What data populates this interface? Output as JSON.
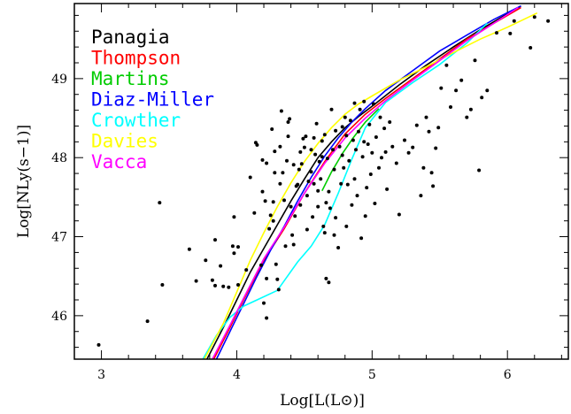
{
  "chart_data": {
    "type": "scatter",
    "xlabel": "Log[L(L⊙)]",
    "ylabel": "Log[NLy(s−1)]",
    "xlim": [
      2.8,
      6.45
    ],
    "ylim": [
      45.45,
      49.95
    ],
    "xticks": [
      3,
      4,
      5,
      6
    ],
    "yticks": [
      46,
      47,
      48,
      49
    ],
    "grid": false,
    "legend_position": "top-left",
    "points": [
      [
        2.98,
        45.63
      ],
      [
        3.34,
        45.93
      ],
      [
        3.43,
        47.43
      ],
      [
        3.45,
        46.39
      ],
      [
        3.65,
        46.84
      ],
      [
        3.7,
        46.44
      ],
      [
        3.77,
        46.7
      ],
      [
        3.82,
        46.45
      ],
      [
        3.84,
        46.38
      ],
      [
        3.84,
        46.96
      ],
      [
        3.88,
        46.63
      ],
      [
        3.9,
        46.37
      ],
      [
        3.94,
        46.36
      ],
      [
        3.97,
        46.88
      ],
      [
        3.98,
        46.79
      ],
      [
        3.98,
        47.25
      ],
      [
        4.01,
        46.39
      ],
      [
        4.01,
        46.87
      ],
      [
        4.07,
        46.58
      ],
      [
        4.1,
        47.75
      ],
      [
        4.13,
        47.3
      ],
      [
        4.14,
        48.19
      ],
      [
        4.15,
        48.16
      ],
      [
        4.18,
        46.64
      ],
      [
        4.19,
        47.57
      ],
      [
        4.19,
        47.97
      ],
      [
        4.2,
        46.16
      ],
      [
        4.21,
        47.45
      ],
      [
        4.22,
        46.47
      ],
      [
        4.22,
        47.93
      ],
      [
        4.22,
        45.97
      ],
      [
        4.24,
        47.1
      ],
      [
        4.25,
        47.27
      ],
      [
        4.26,
        48.36
      ],
      [
        4.27,
        47.2
      ],
      [
        4.27,
        47.44
      ],
      [
        4.28,
        47.81
      ],
      [
        4.28,
        48.08
      ],
      [
        4.29,
        46.65
      ],
      [
        4.3,
        46.46
      ],
      [
        4.31,
        46.33
      ],
      [
        4.32,
        47.67
      ],
      [
        4.32,
        48.14
      ],
      [
        4.33,
        48.59
      ],
      [
        4.34,
        47.81
      ],
      [
        4.35,
        47.46
      ],
      [
        4.36,
        46.88
      ],
      [
        4.37,
        47.96
      ],
      [
        4.38,
        48.27
      ],
      [
        4.38,
        48.45
      ],
      [
        4.39,
        48.49
      ],
      [
        4.4,
        47.38
      ],
      [
        4.41,
        47.02
      ],
      [
        4.42,
        46.9
      ],
      [
        4.42,
        47.91
      ],
      [
        4.43,
        47.26
      ],
      [
        4.44,
        47.64
      ],
      [
        4.45,
        47.66
      ],
      [
        4.46,
        47.85
      ],
      [
        4.47,
        47.4
      ],
      [
        4.47,
        48.07
      ],
      [
        4.48,
        47.92
      ],
      [
        4.49,
        48.24
      ],
      [
        4.5,
        48.13
      ],
      [
        4.51,
        48.27
      ],
      [
        4.52,
        47.09
      ],
      [
        4.52,
        47.52
      ],
      [
        4.53,
        47.7
      ],
      [
        4.55,
        47.82
      ],
      [
        4.55,
        48.1
      ],
      [
        4.56,
        47.25
      ],
      [
        4.57,
        47.67
      ],
      [
        4.57,
        48.25
      ],
      [
        4.58,
        48.04
      ],
      [
        4.59,
        48.43
      ],
      [
        4.6,
        47.38
      ],
      [
        4.6,
        47.58
      ],
      [
        4.61,
        47.95
      ],
      [
        4.62,
        47.73
      ],
      [
        4.63,
        48.01
      ],
      [
        4.63,
        48.21
      ],
      [
        4.64,
        47.13
      ],
      [
        4.65,
        47.05
      ],
      [
        4.65,
        48.29
      ],
      [
        4.66,
        46.47
      ],
      [
        4.66,
        47.43
      ],
      [
        4.67,
        47.99
      ],
      [
        4.68,
        46.42
      ],
      [
        4.68,
        47.57
      ],
      [
        4.69,
        47.36
      ],
      [
        4.7,
        48.61
      ],
      [
        4.71,
        48.1
      ],
      [
        4.72,
        47.02
      ],
      [
        4.72,
        47.85
      ],
      [
        4.73,
        47.24
      ],
      [
        4.73,
        48.34
      ],
      [
        4.75,
        46.86
      ],
      [
        4.76,
        48.14
      ],
      [
        4.77,
        47.67
      ],
      [
        4.78,
        48.03
      ],
      [
        4.78,
        48.39
      ],
      [
        4.79,
        47.87
      ],
      [
        4.8,
        48.51
      ],
      [
        4.81,
        47.13
      ],
      [
        4.81,
        48.28
      ],
      [
        4.82,
        47.66
      ],
      [
        4.83,
        47.96
      ],
      [
        4.84,
        48.47
      ],
      [
        4.85,
        47.4
      ],
      [
        4.86,
        48.22
      ],
      [
        4.87,
        47.73
      ],
      [
        4.87,
        48.69
      ],
      [
        4.88,
        48.1
      ],
      [
        4.89,
        47.52
      ],
      [
        4.9,
        48.33
      ],
      [
        4.91,
        48.61
      ],
      [
        4.92,
        46.98
      ],
      [
        4.93,
        48.01
      ],
      [
        4.94,
        48.2
      ],
      [
        4.94,
        48.71
      ],
      [
        4.95,
        47.26
      ],
      [
        4.96,
        47.62
      ],
      [
        4.97,
        48.17
      ],
      [
        4.98,
        48.42
      ],
      [
        4.99,
        47.79
      ],
      [
        5.0,
        48.06
      ],
      [
        5.01,
        48.68
      ],
      [
        5.02,
        47.42
      ],
      [
        5.03,
        48.26
      ],
      [
        5.05,
        47.87
      ],
      [
        5.06,
        48.51
      ],
      [
        5.07,
        48.0
      ],
      [
        5.09,
        48.37
      ],
      [
        5.1,
        48.07
      ],
      [
        5.11,
        47.6
      ],
      [
        5.13,
        48.45
      ],
      [
        5.15,
        48.14
      ],
      [
        5.18,
        47.93
      ],
      [
        5.2,
        47.28
      ],
      [
        5.24,
        48.22
      ],
      [
        5.27,
        48.06
      ],
      [
        5.3,
        48.13
      ],
      [
        5.33,
        48.41
      ],
      [
        5.36,
        47.52
      ],
      [
        5.38,
        47.87
      ],
      [
        5.4,
        48.51
      ],
      [
        5.42,
        48.33
      ],
      [
        5.44,
        47.81
      ],
      [
        5.45,
        47.64
      ],
      [
        5.47,
        48.12
      ],
      [
        5.49,
        48.38
      ],
      [
        5.51,
        48.88
      ],
      [
        5.55,
        49.17
      ],
      [
        5.58,
        48.64
      ],
      [
        5.62,
        48.85
      ],
      [
        5.66,
        48.98
      ],
      [
        5.7,
        48.51
      ],
      [
        5.73,
        48.61
      ],
      [
        5.76,
        49.23
      ],
      [
        5.79,
        47.84
      ],
      [
        5.81,
        48.76
      ],
      [
        5.85,
        48.85
      ],
      [
        5.92,
        49.58
      ],
      [
        6.02,
        49.57
      ],
      [
        6.05,
        49.73
      ],
      [
        6.17,
        49.39
      ],
      [
        6.2,
        49.78
      ],
      [
        6.3,
        49.73
      ]
    ],
    "series": [
      {
        "name": "Panagia",
        "color": "#000000",
        "x": [
          3.78,
          3.9,
          4.0,
          4.1,
          4.2,
          4.3,
          4.4,
          4.5,
          4.6,
          4.7,
          4.8,
          4.9,
          5.0,
          5.2,
          5.4,
          5.6,
          5.8,
          6.0,
          6.1
        ],
        "y": [
          45.45,
          45.85,
          46.2,
          46.55,
          46.85,
          47.15,
          47.45,
          47.73,
          48.0,
          48.2,
          48.38,
          48.52,
          48.65,
          48.92,
          49.17,
          49.4,
          49.62,
          49.82,
          49.92
        ]
      },
      {
        "name": "Thompson",
        "color": "#ff0000",
        "x": [
          3.83,
          3.95,
          4.05,
          4.2,
          4.35,
          4.5,
          4.65,
          4.8,
          4.95,
          5.1,
          5.3,
          5.5,
          5.7,
          5.9,
          6.1
        ],
        "y": [
          45.45,
          45.85,
          46.2,
          46.7,
          47.1,
          47.55,
          47.95,
          48.3,
          48.55,
          48.75,
          49.0,
          49.25,
          49.5,
          49.7,
          49.9
        ]
      },
      {
        "name": "Martins",
        "color": "#00cc00",
        "x": [
          4.63,
          4.7,
          4.78,
          4.86,
          4.95,
          5.05
        ],
        "y": [
          47.58,
          47.82,
          48.05,
          48.25,
          48.45,
          48.62
        ]
      },
      {
        "name": "Diaz-Miller",
        "color": "#0000ff",
        "x": [
          3.85,
          3.95,
          4.05,
          4.15,
          4.25,
          4.35,
          4.45,
          4.55,
          4.65,
          4.75,
          4.85,
          4.95,
          5.1,
          5.3,
          5.5,
          5.7,
          5.9,
          6.1
        ],
        "y": [
          45.45,
          45.8,
          46.15,
          46.5,
          46.83,
          47.13,
          47.45,
          47.75,
          48.02,
          48.25,
          48.45,
          48.62,
          48.85,
          49.1,
          49.35,
          49.55,
          49.75,
          49.92
        ]
      },
      {
        "name": "Crowther",
        "color": "#00ffff",
        "x": [
          3.75,
          3.85,
          3.95,
          4.05,
          4.15,
          4.3,
          4.45,
          4.55,
          4.65,
          4.75,
          4.85,
          4.95,
          5.1,
          5.3,
          5.5,
          5.7,
          5.85
        ],
        "y": [
          45.45,
          45.75,
          45.98,
          46.12,
          46.2,
          46.32,
          46.68,
          46.88,
          47.15,
          47.55,
          47.98,
          48.38,
          48.7,
          48.95,
          49.18,
          49.45,
          49.7
        ]
      },
      {
        "name": "Davies",
        "color": "#ffff00",
        "x": [
          3.76,
          3.9,
          4.0,
          4.1,
          4.2,
          4.3,
          4.4,
          4.5,
          4.6,
          4.7,
          4.8,
          4.9,
          5.0,
          5.2,
          5.4,
          5.6,
          5.8,
          6.0,
          6.22
        ],
        "y": [
          45.45,
          45.9,
          46.3,
          46.7,
          47.05,
          47.38,
          47.68,
          47.95,
          48.18,
          48.38,
          48.55,
          48.68,
          48.78,
          48.98,
          49.15,
          49.33,
          49.5,
          49.65,
          49.83
        ]
      },
      {
        "name": "Vacca",
        "color": "#ff00ff",
        "x": [
          3.82,
          3.95,
          4.05,
          4.2,
          4.35,
          4.5,
          4.65,
          4.8,
          4.95,
          5.1,
          5.3,
          5.5,
          5.7,
          5.9,
          6.08
        ],
        "y": [
          45.45,
          45.88,
          46.22,
          46.72,
          47.12,
          47.55,
          47.93,
          48.25,
          48.5,
          48.72,
          48.98,
          49.23,
          49.48,
          49.7,
          49.9
        ]
      }
    ]
  }
}
